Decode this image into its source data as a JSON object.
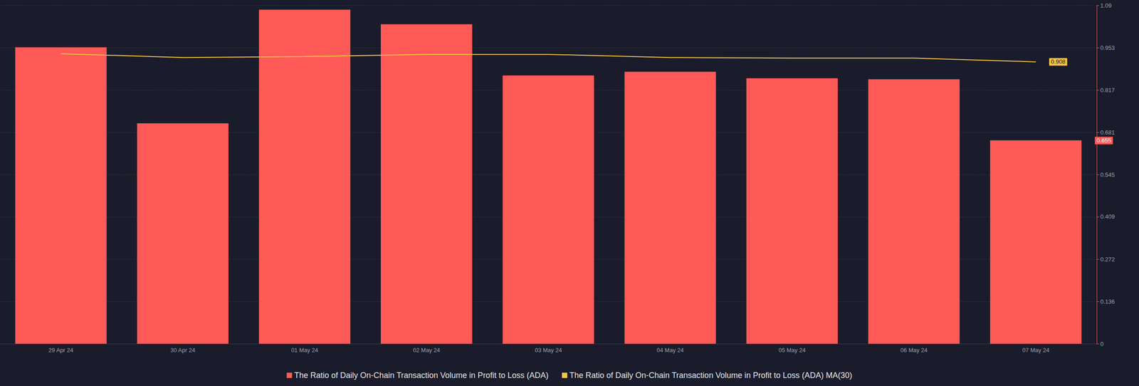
{
  "chart_data": {
    "type": "bar",
    "categories": [
      "29 Apr 24",
      "30 Apr 24",
      "01 May 24",
      "02 May 24",
      "03 May 24",
      "04 May 24",
      "05 May 24",
      "06 May 24",
      "07 May 24"
    ],
    "series": [
      {
        "name": "The Ratio of Daily On-Chain Transaction Volume in Profit to Loss (ADA)",
        "type": "bar",
        "color": "#ff5a57",
        "values": [
          0.955,
          0.71,
          1.076,
          1.029,
          0.864,
          0.876,
          0.855,
          0.852,
          0.655
        ]
      },
      {
        "name": "The Ratio of Daily On-Chain Transaction Volume in Profit to Loss (ADA) MA(30)",
        "type": "line",
        "color": "#f5c542",
        "values": [
          0.934,
          0.922,
          0.925,
          0.932,
          0.932,
          0.922,
          0.92,
          0.92,
          0.908
        ]
      }
    ],
    "ylim": [
      0,
      1.09
    ],
    "yticks": [
      0,
      0.136,
      0.272,
      0.409,
      0.545,
      0.681,
      0.817,
      0.953,
      1.09
    ],
    "grid": true,
    "legend": "bottom"
  }
}
